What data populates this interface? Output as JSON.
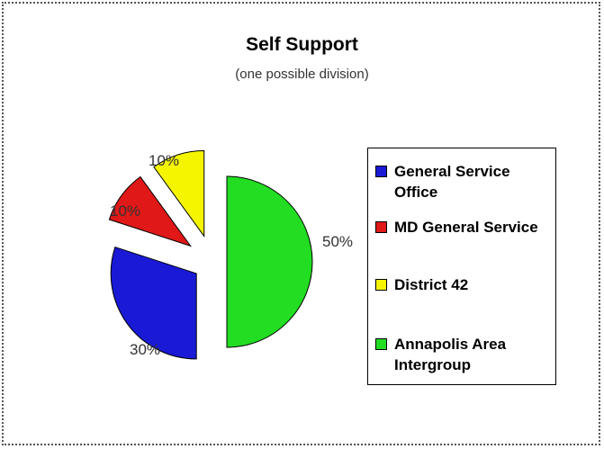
{
  "chart_data": {
    "type": "pie",
    "title": "Self Support",
    "subtitle": "(one possible division)",
    "exploded": true,
    "legend_position": "right",
    "series": [
      {
        "name": "General Service Office",
        "value": 30,
        "label": "30%",
        "color": "#1a1ad6"
      },
      {
        "name": "MD General Service",
        "value": 10,
        "label": "10%",
        "color": "#e01818"
      },
      {
        "name": "District 42",
        "value": 10,
        "label": "10%",
        "color": "#f5f500"
      },
      {
        "name": "Annapolis Area Intergroup",
        "value": 50,
        "label": "50%",
        "color": "#22dd22"
      }
    ]
  }
}
